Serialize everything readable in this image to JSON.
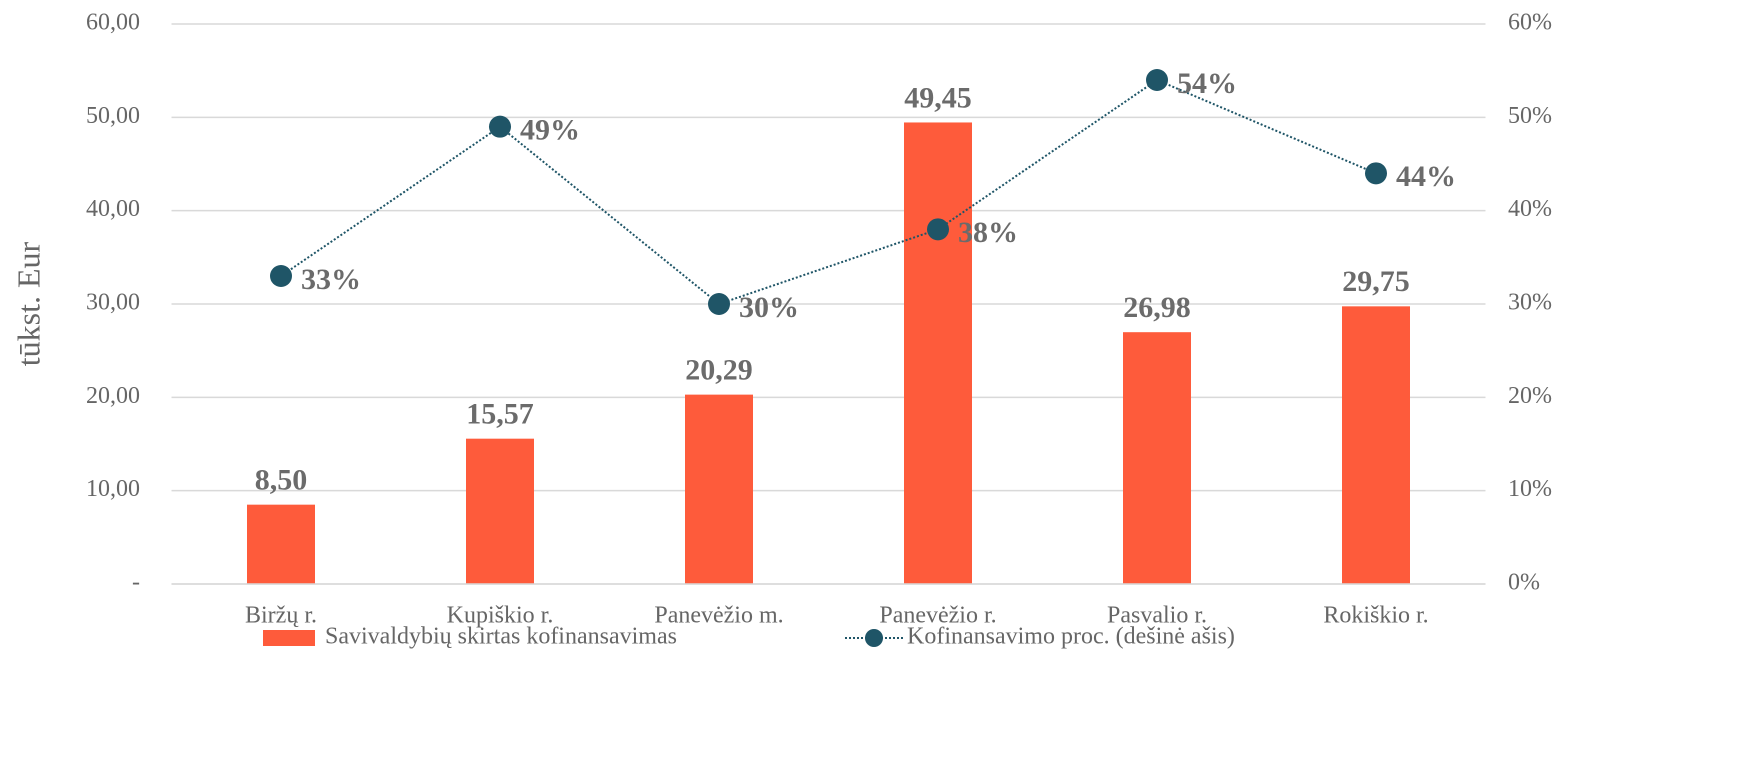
{
  "chart_data": {
    "type": "bar",
    "y_label": "tūkst. Eur",
    "categories": [
      "Biržų r.",
      "Kupiškio r.",
      "Panevėžio m.",
      "Panevėžio r.",
      "Pasvalio r.",
      "Rokiškio r."
    ],
    "series": [
      {
        "name": "Savivaldybių skirtas kofinansavimas",
        "type": "bar",
        "color": "#fe5b3b",
        "values": [
          8.5,
          15.57,
          20.29,
          49.45,
          26.98,
          29.75
        ],
        "value_labels": [
          "8,50",
          "15,57",
          "20,29",
          "49,45",
          "26,98",
          "29,75"
        ]
      },
      {
        "name": "Kofinansavimo proc. (dešinė ašis)",
        "type": "line",
        "axis": "y2",
        "color": "#1f5567",
        "values": [
          33,
          49,
          30,
          38,
          54,
          44
        ],
        "value_labels": [
          "33%",
          "49%",
          "30%",
          "38%",
          "54%",
          "44%"
        ]
      }
    ],
    "ylim": [
      0,
      60
    ],
    "yticks": [
      {
        "value": 0,
        "label": "-"
      },
      {
        "value": 10,
        "label": "10,00"
      },
      {
        "value": 20,
        "label": "20,00"
      },
      {
        "value": 30,
        "label": "30,00"
      },
      {
        "value": 40,
        "label": "40,00"
      },
      {
        "value": 50,
        "label": "50,00"
      },
      {
        "value": 60,
        "label": "60,00"
      }
    ],
    "y2lim": [
      0,
      60
    ],
    "y2ticks": [
      {
        "value": 0,
        "label": "0%"
      },
      {
        "value": 10,
        "label": "10%"
      },
      {
        "value": 20,
        "label": "20%"
      },
      {
        "value": 30,
        "label": "30%"
      },
      {
        "value": 40,
        "label": "40%"
      },
      {
        "value": 50,
        "label": "50%"
      },
      {
        "value": 60,
        "label": "60%"
      }
    ],
    "grid": true,
    "legend": "bottom"
  }
}
